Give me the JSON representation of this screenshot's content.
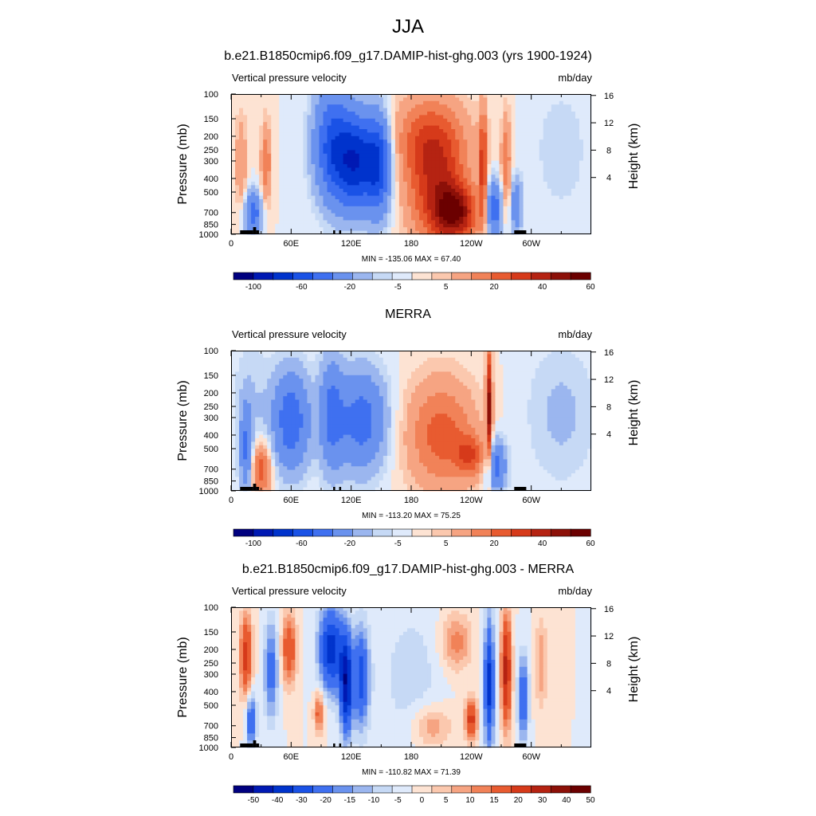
{
  "page": {
    "title": "JJA"
  },
  "colors": {
    "full_scale": [
      "#00007f",
      "#0019b3",
      "#0033cc",
      "#1a52e6",
      "#3f70f0",
      "#6a92ee",
      "#9bb6ef",
      "#c6d9f5",
      "#dfeafb",
      "#fde3d3",
      "#fbc8ae",
      "#f6a482",
      "#f18258",
      "#e85b30",
      "#d63a1a",
      "#b52312",
      "#8c1008",
      "#6b0000"
    ],
    "diff_scale": [
      "#00007f",
      "#0019b3",
      "#0033cc",
      "#1a52e6",
      "#3f70f0",
      "#6a92ee",
      "#9bb6ef",
      "#c6d9f5",
      "#dfeafb",
      "#fde3d3",
      "#fbc8ae",
      "#f6a482",
      "#f18258",
      "#e85b30",
      "#d63a1a",
      "#b52312",
      "#8c1008",
      "#6b0000"
    ]
  },
  "chart_data": [
    {
      "type": "heatmap",
      "title": "b.e21.B1850cmip6.f09_g17.DAMIP-hist-ghg.003 (yrs 1900-1924)",
      "variable": "Vertical pressure velocity",
      "units": "mb/day",
      "ylabel": "Pressure (mb)",
      "ylabel_right": "Height (km)",
      "x_ticks": [
        "0",
        "60E",
        "120E",
        "180",
        "120W",
        "60W"
      ],
      "y_ticks": [
        "100",
        "150",
        "200",
        "250",
        "300",
        "400",
        "500",
        "700",
        "850",
        "1000"
      ],
      "y_right_ticks": [
        "16",
        "12",
        "8",
        "4"
      ],
      "stats": "MIN = -135.06  MAX =  67.40",
      "min": -135.06,
      "max": 67.4,
      "colorbar_labels": [
        "-100",
        "-60",
        "-20",
        "-5",
        "5",
        "20",
        "40",
        "60"
      ]
    },
    {
      "type": "heatmap",
      "title": "MERRA",
      "variable": "Vertical pressure velocity",
      "units": "mb/day",
      "ylabel": "Pressure (mb)",
      "ylabel_right": "Height (km)",
      "x_ticks": [
        "0",
        "60E",
        "120E",
        "180",
        "120W",
        "60W"
      ],
      "y_ticks": [
        "100",
        "150",
        "200",
        "250",
        "300",
        "400",
        "500",
        "700",
        "850",
        "1000"
      ],
      "y_right_ticks": [
        "16",
        "12",
        "8",
        "4"
      ],
      "stats": "MIN = -113.20  MAX =  75.25",
      "min": -113.2,
      "max": 75.25,
      "colorbar_labels": [
        "-100",
        "-60",
        "-20",
        "-5",
        "5",
        "20",
        "40",
        "60"
      ]
    },
    {
      "type": "heatmap",
      "title": "b.e21.B1850cmip6.f09_g17.DAMIP-hist-ghg.003 - MERRA",
      "variable": "Vertical pressure velocity",
      "units": "mb/day",
      "ylabel": "Pressure (mb)",
      "ylabel_right": "Height (km)",
      "x_ticks": [
        "0",
        "60E",
        "120E",
        "180",
        "120W",
        "60W"
      ],
      "y_ticks": [
        "100",
        "150",
        "200",
        "250",
        "300",
        "400",
        "500",
        "700",
        "850",
        "1000"
      ],
      "y_right_ticks": [
        "16",
        "12",
        "8",
        "4"
      ],
      "stats": "MIN = -110.82  MAX =  71.39",
      "min": -110.82,
      "max": 71.39,
      "colorbar_labels": [
        "-50",
        "-40",
        "-30",
        "-20",
        "-15",
        "-10",
        "-5",
        "0",
        "5",
        "10",
        "15",
        "20",
        "30",
        "40",
        "50"
      ]
    }
  ]
}
